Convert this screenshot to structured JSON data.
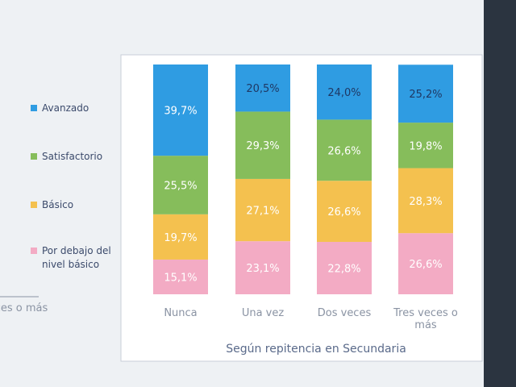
{
  "chart_data": {
    "type": "stacked_bar",
    "x_label": "Según repitencia en Secundaria",
    "cut_label": "veces o más",
    "categories": [
      "Nunca",
      "Una vez",
      "Dos veces",
      "Tres veces o más"
    ],
    "ylim": [
      0,
      100
    ],
    "series": [
      {
        "name": "Por debajo del nivel básico",
        "color": "#f3abc4",
        "values": [
          15.1,
          23.1,
          22.8,
          26.6
        ],
        "value_labels": [
          "15,1%",
          "23,1%",
          "22,8%",
          "26,6%"
        ]
      },
      {
        "name": "Básico",
        "color": "#f4c14f",
        "values": [
          19.7,
          27.1,
          26.6,
          28.3
        ],
        "value_labels": [
          "19,7%",
          "27,1%",
          "26,6%",
          "28,3%"
        ]
      },
      {
        "name": "Satisfactorio",
        "color": "#86bd5b",
        "values": [
          25.5,
          29.3,
          26.6,
          19.8
        ],
        "value_labels": [
          "25,5%",
          "29,3%",
          "26,6%",
          "19,8%"
        ]
      },
      {
        "name": "Avanzado",
        "color": "#2f9ce2",
        "values": [
          39.7,
          20.5,
          24.0,
          25.2
        ],
        "value_labels": [
          "39,7%",
          "20,5%",
          "24,0%",
          "25,2%"
        ]
      }
    ]
  }
}
